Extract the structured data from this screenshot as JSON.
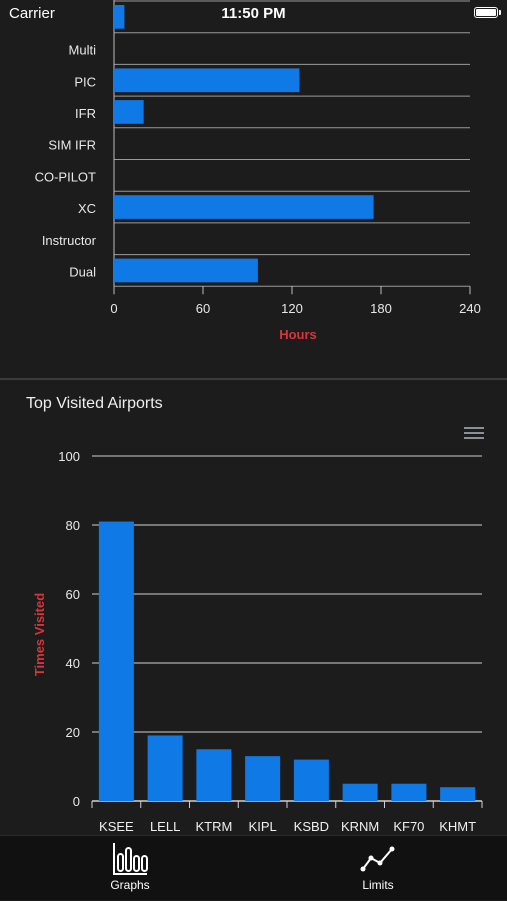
{
  "status_bar": {
    "carrier": "Carrier",
    "time": "11:50 PM"
  },
  "hours_chart": {
    "type": "bar",
    "orientation": "horizontal",
    "categories": [
      "",
      "Multi",
      "PIC",
      "IFR",
      "SIM IFR",
      "CO-PILOT",
      "XC",
      "Instructor",
      "Dual"
    ],
    "values": [
      7,
      0,
      125,
      20,
      0,
      0,
      175,
      0,
      97
    ],
    "xlabel": "Hours",
    "xlim": [
      0,
      240
    ],
    "xticks": [
      0,
      60,
      120,
      180,
      240
    ],
    "bar_color": "#0f7ae5",
    "label_color": "#d8343b"
  },
  "airports_chart": {
    "type": "bar",
    "title": "Top Visited Airports",
    "categories": [
      "KSEE",
      "LELL",
      "KTRM",
      "KIPL",
      "KSBD",
      "KRNM",
      "KF70",
      "KHMT"
    ],
    "values": [
      81,
      19,
      15,
      13,
      12,
      5,
      5,
      4
    ],
    "ylabel": "Times Visited",
    "ylim": [
      0,
      100
    ],
    "yticks": [
      0,
      20,
      40,
      60,
      80,
      100
    ],
    "bar_color": "#0f7ae5",
    "label_color": "#d8343b"
  },
  "chart_data": [
    {
      "type": "bar",
      "categories": [
        "",
        "Multi",
        "PIC",
        "IFR",
        "SIM IFR",
        "CO-PILOT",
        "XC",
        "Instructor",
        "Dual"
      ],
      "values": [
        7,
        0,
        125,
        20,
        0,
        0,
        175,
        0,
        97
      ],
      "xlabel": "Hours",
      "xlim": [
        0,
        240
      ],
      "orientation": "horizontal"
    },
    {
      "type": "bar",
      "title": "Top Visited Airports",
      "categories": [
        "KSEE",
        "LELL",
        "KTRM",
        "KIPL",
        "KSBD",
        "KRNM",
        "KF70",
        "KHMT"
      ],
      "values": [
        81,
        19,
        15,
        13,
        12,
        5,
        5,
        4
      ],
      "ylabel": "Times Visited",
      "ylim": [
        0,
        100
      ]
    }
  ],
  "tab_bar": {
    "items": [
      {
        "label": "Graphs",
        "icon": "bar-chart-icon"
      },
      {
        "label": "Limits",
        "icon": "line-chart-icon"
      }
    ]
  }
}
